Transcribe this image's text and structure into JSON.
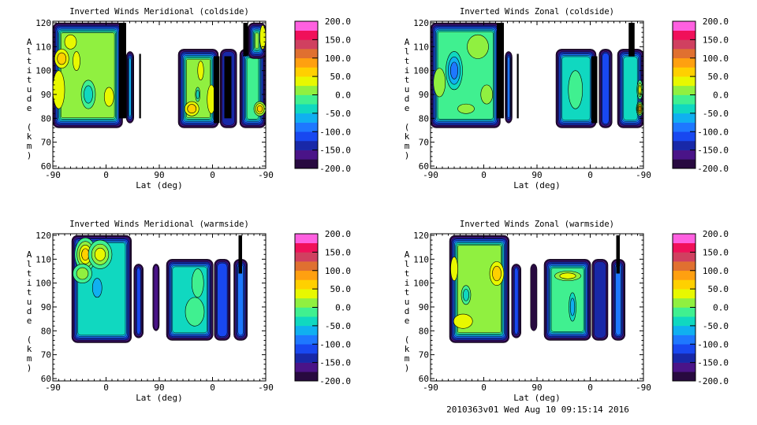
{
  "colorbar": {
    "labels": [
      "200.0",
      "150.0",
      "100.0",
      "50.0",
      "0.0",
      "-50.0",
      "-100.0",
      "-150.0",
      "-200.0"
    ],
    "colors": [
      "#280a40",
      "#4a1488",
      "#1828a8",
      "#1848f0",
      "#1e78ff",
      "#10b0f0",
      "#10d8c0",
      "#40f090",
      "#90f040",
      "#e8f800",
      "#ffd000",
      "#ffa010",
      "#e07030",
      "#d04060",
      "#f0105a",
      "#ff60e0"
    ]
  },
  "footer": "2010363v01 Wed Aug 10 09:15:14 2016",
  "chart_data": [
    {
      "type": "heatmap",
      "title": "Inverted Winds Meridional (coldside)",
      "xlabel": "Lat (deg)",
      "ylabel": "Altitude (km)",
      "xtick_labels": [
        "-90",
        "0",
        "90",
        "0",
        "-90"
      ],
      "ytick_labels": [
        "60",
        "70",
        "80",
        "90",
        "100",
        "110",
        "120"
      ],
      "ylim": [
        60,
        120
      ],
      "levels": [
        -200,
        200,
        25
      ],
      "regions": [
        {
          "track": [
            0,
            118
          ],
          "alt": [
            76,
            120
          ],
          "value": 10,
          "blobs": [
            [
              15,
              105,
              12,
              4,
              60
            ],
            [
              10,
              92,
              10,
              8,
              40
            ],
            [
              60,
              90,
              12,
              6,
              -35
            ],
            [
              95,
              89,
              8,
              4,
              40
            ],
            [
              40,
              104,
              6,
              4,
              40
            ],
            [
              30,
              112,
              10,
              3,
              30
            ]
          ]
        },
        {
          "track": [
            112,
            124
          ],
          "alt": [
            80,
            120
          ],
          "value": null
        },
        {
          "track": [
            124,
            137
          ],
          "alt": [
            78,
            108
          ],
          "value": -60
        },
        {
          "track": [
            146,
            149
          ],
          "alt": [
            80,
            107
          ],
          "value": null
        },
        {
          "track": [
            212,
            280
          ],
          "alt": [
            76,
            109
          ],
          "value": 10,
          "blobs": [
            [
              235,
              84,
              12,
              3,
              60
            ],
            [
              250,
              100,
              5,
              4,
              40
            ],
            [
              245,
              90,
              4,
              3,
              -40
            ],
            [
              268,
              88,
              7,
              6,
              40
            ]
          ]
        },
        {
          "track": [
            272,
            282
          ],
          "alt": [
            78,
            106
          ],
          "value": null
        },
        {
          "track": [
            283,
            311
          ],
          "alt": [
            76,
            109
          ],
          "value": -150
        },
        {
          "track": [
            290,
            302
          ],
          "alt": [
            80,
            106
          ],
          "value": null
        },
        {
          "track": [
            316,
            360
          ],
          "alt": [
            76,
            109
          ],
          "value": -10,
          "blobs": [
            [
              350,
              84,
              10,
              3,
              50
            ]
          ]
        },
        {
          "track": [
            330,
            360
          ],
          "alt": [
            105,
            120
          ],
          "value": 20,
          "blobs": [
            [
              355,
              114,
              5,
              5,
              40
            ]
          ]
        },
        {
          "track": [
            322,
            330
          ],
          "alt": [
            106,
            120
          ],
          "value": null
        }
      ]
    },
    {
      "type": "heatmap",
      "title": "Inverted Winds Zonal (coldside)",
      "xlabel": "Lat (deg)",
      "ylabel": "Altitude (km)",
      "xtick_labels": [
        "-90",
        "0",
        "90",
        "0",
        "-90"
      ],
      "ytick_labels": [
        "60",
        "70",
        "80",
        "90",
        "100",
        "110",
        "120"
      ],
      "ylim": [
        60,
        120
      ],
      "levels": [
        -200,
        200,
        25
      ],
      "regions": [
        {
          "track": [
            0,
            118
          ],
          "alt": [
            76,
            120
          ],
          "value": -20,
          "blobs": [
            [
              40,
              100,
              14,
              8,
              -90
            ],
            [
              15,
              95,
              10,
              6,
              20
            ],
            [
              80,
              110,
              18,
              5,
              20
            ],
            [
              95,
              90,
              10,
              4,
              10
            ],
            [
              60,
              84,
              14,
              2,
              0
            ]
          ]
        },
        {
          "track": [
            112,
            124
          ],
          "alt": [
            80,
            120
          ],
          "value": null
        },
        {
          "track": [
            126,
            138
          ],
          "alt": [
            78,
            108
          ],
          "value": -100
        },
        {
          "track": [
            146,
            149
          ],
          "alt": [
            80,
            107
          ],
          "value": null
        },
        {
          "track": [
            212,
            280
          ],
          "alt": [
            76,
            109
          ],
          "value": -50,
          "blobs": [
            [
              245,
              92,
              12,
              8,
              -20
            ]
          ]
        },
        {
          "track": [
            272,
            282
          ],
          "alt": [
            78,
            106
          ],
          "value": null
        },
        {
          "track": [
            285,
            307
          ],
          "alt": [
            76,
            109
          ],
          "value": -120
        },
        {
          "track": [
            316,
            360
          ],
          "alt": [
            76,
            109
          ],
          "value": -40,
          "blobs": [
            [
              354,
              84,
              6,
              3,
              90
            ],
            [
              354,
              92,
              5,
              4,
              30
            ]
          ]
        },
        {
          "track": [
            335,
            345
          ],
          "alt": [
            106,
            120
          ],
          "value": null
        }
      ]
    },
    {
      "type": "heatmap",
      "title": "Inverted Winds Meridional (warmside)",
      "xlabel": "Lat (deg)",
      "ylabel": "Altitude (km)",
      "xtick_labels": [
        "-90",
        "0",
        "90",
        "0",
        "-90"
      ],
      "ytick_labels": [
        "60",
        "70",
        "80",
        "90",
        "100",
        "110",
        "120"
      ],
      "ylim": [
        60,
        120
      ],
      "levels": [
        -200,
        200,
        25
      ],
      "regions": [
        {
          "track": [
            32,
            133
          ],
          "alt": [
            75,
            120
          ],
          "value": -40,
          "blobs": [
            [
              55,
              112,
              18,
              7,
              70
            ],
            [
              80,
              112,
              20,
              6,
              30
            ],
            [
              75,
              98,
              8,
              4,
              -70
            ],
            [
              50,
              104,
              16,
              4,
              10
            ]
          ]
        },
        {
          "track": [
            137,
            153
          ],
          "alt": [
            77,
            108
          ],
          "value": -110
        },
        {
          "track": [
            169,
            180
          ],
          "alt": [
            80,
            108
          ],
          "value": -170
        },
        {
          "track": [
            192,
            271
          ],
          "alt": [
            76,
            110
          ],
          "value": -30,
          "blobs": [
            [
              240,
              88,
              16,
              6,
              -5
            ],
            [
              245,
              100,
              10,
              6,
              -5
            ]
          ]
        },
        {
          "track": [
            273,
            300
          ],
          "alt": [
            76,
            110
          ],
          "value": -120
        },
        {
          "track": [
            306,
            329
          ],
          "alt": [
            76,
            110
          ],
          "value": -80
        },
        {
          "track": [
            314,
            320
          ],
          "alt": [
            104,
            120
          ],
          "value": null
        }
      ]
    },
    {
      "type": "heatmap",
      "title": "Inverted Winds Zonal (warmside)",
      "xlabel": "Lat (deg)",
      "ylabel": "Altitude (km)",
      "xtick_labels": [
        "-90",
        "0",
        "90",
        "0",
        "-90"
      ],
      "ytick_labels": [
        "60",
        "70",
        "80",
        "90",
        "100",
        "110",
        "120"
      ],
      "ylim": [
        60,
        120
      ],
      "levels": [
        -200,
        200,
        25
      ],
      "regions": [
        {
          "track": [
            32,
            133
          ],
          "alt": [
            75,
            120
          ],
          "value": 0,
          "blobs": [
            [
              55,
              84,
              16,
              3,
              45
            ],
            [
              112,
              104,
              12,
              5,
              60
            ],
            [
              60,
              95,
              8,
              4,
              -40
            ],
            [
              40,
              106,
              6,
              5,
              35
            ]
          ]
        },
        {
          "track": [
            137,
            153
          ],
          "alt": [
            77,
            108
          ],
          "value": -120
        },
        {
          "track": [
            169,
            180
          ],
          "alt": [
            80,
            108
          ],
          "value": -190
        },
        {
          "track": [
            192,
            271
          ],
          "alt": [
            76,
            110
          ],
          "value": -25,
          "blobs": [
            [
              232,
              103,
              22,
              2,
              40
            ],
            [
              240,
              90,
              6,
              6,
              -70
            ]
          ]
        },
        {
          "track": [
            273,
            300
          ],
          "alt": [
            76,
            110
          ],
          "value": -130
        },
        {
          "track": [
            306,
            329
          ],
          "alt": [
            76,
            110
          ],
          "value": -100
        },
        {
          "track": [
            314,
            320
          ],
          "alt": [
            104,
            120
          ],
          "value": null
        }
      ]
    }
  ]
}
